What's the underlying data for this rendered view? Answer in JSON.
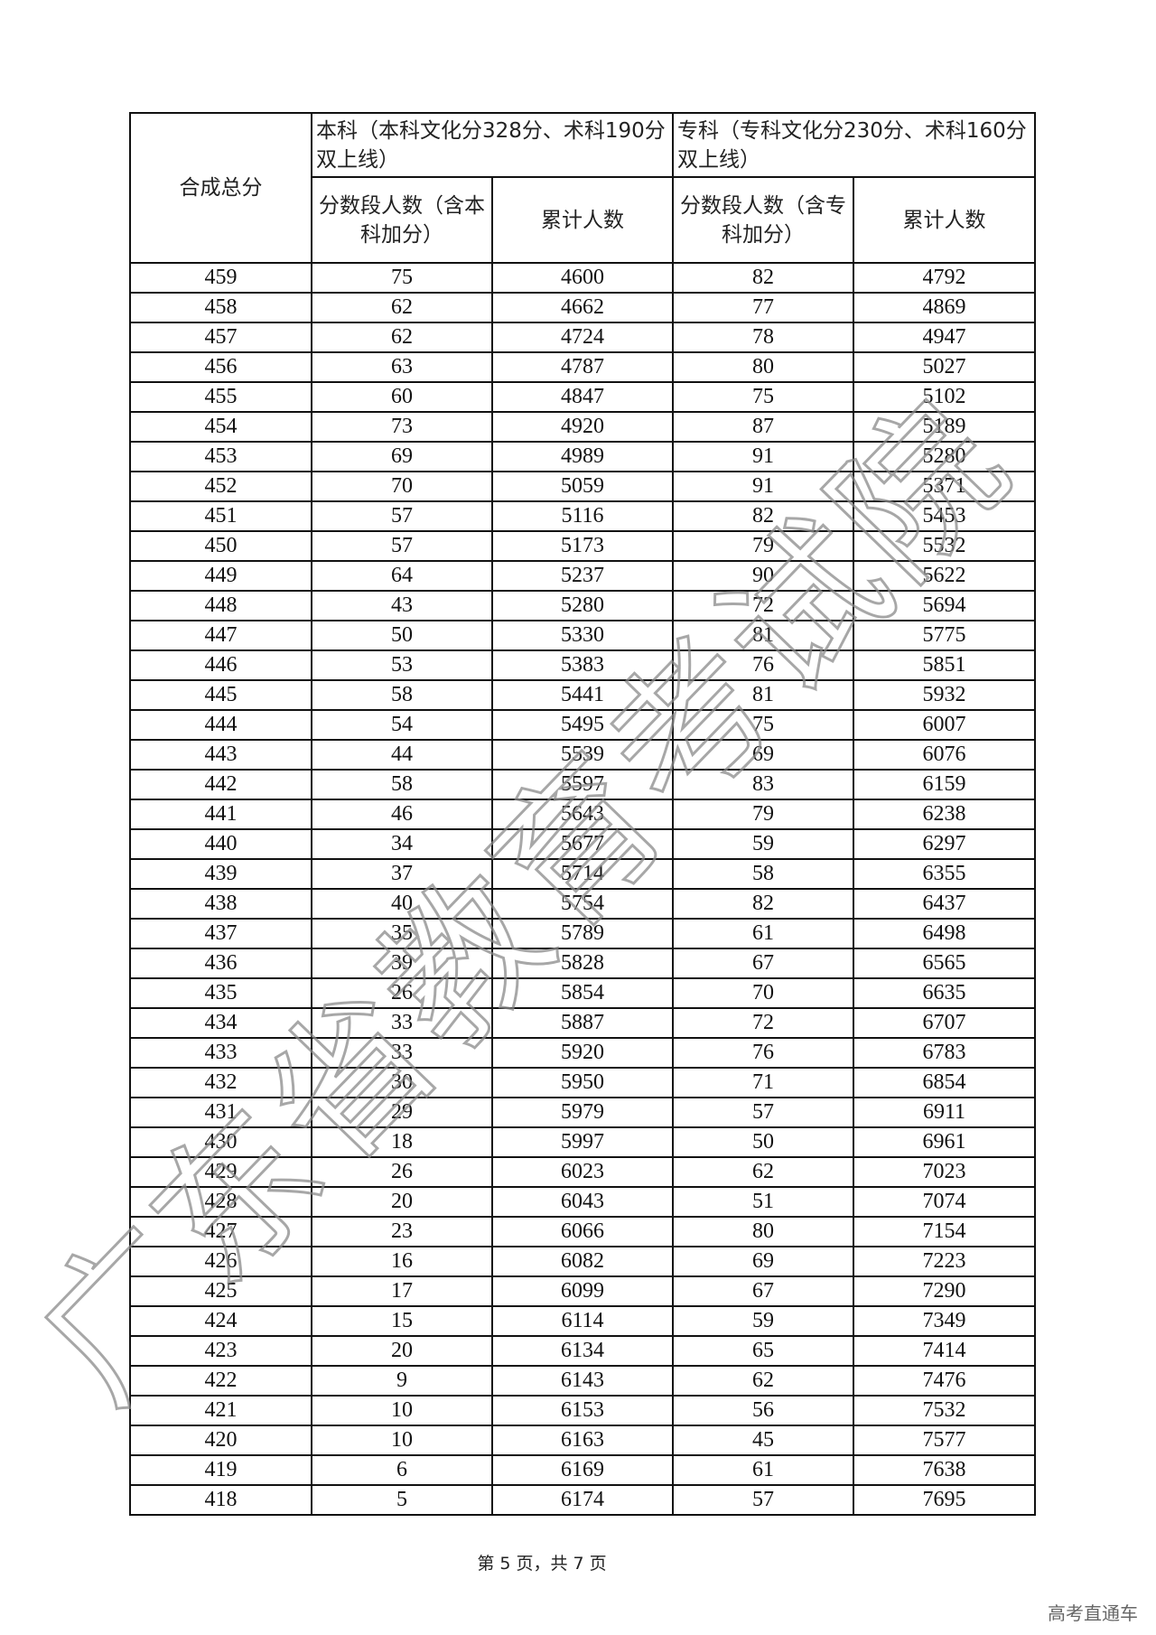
{
  "table": {
    "header_total": "合成总分",
    "group_benke": "本科（本科文化分328分、术科190分双上线）",
    "group_zhuanke": "专科（专科文化分230分、术科160分双上线）",
    "benke_count": "分数段人数（含本科加分）",
    "benke_cum": "累计人数",
    "zhuanke_count": "分数段人数（含专科加分）",
    "zhuanke_cum": "累计人数",
    "rows": [
      [
        "459",
        "75",
        "4600",
        "82",
        "4792"
      ],
      [
        "458",
        "62",
        "4662",
        "77",
        "4869"
      ],
      [
        "457",
        "62",
        "4724",
        "78",
        "4947"
      ],
      [
        "456",
        "63",
        "4787",
        "80",
        "5027"
      ],
      [
        "455",
        "60",
        "4847",
        "75",
        "5102"
      ],
      [
        "454",
        "73",
        "4920",
        "87",
        "5189"
      ],
      [
        "453",
        "69",
        "4989",
        "91",
        "5280"
      ],
      [
        "452",
        "70",
        "5059",
        "91",
        "5371"
      ],
      [
        "451",
        "57",
        "5116",
        "82",
        "5453"
      ],
      [
        "450",
        "57",
        "5173",
        "79",
        "5532"
      ],
      [
        "449",
        "64",
        "5237",
        "90",
        "5622"
      ],
      [
        "448",
        "43",
        "5280",
        "72",
        "5694"
      ],
      [
        "447",
        "50",
        "5330",
        "81",
        "5775"
      ],
      [
        "446",
        "53",
        "5383",
        "76",
        "5851"
      ],
      [
        "445",
        "58",
        "5441",
        "81",
        "5932"
      ],
      [
        "444",
        "54",
        "5495",
        "75",
        "6007"
      ],
      [
        "443",
        "44",
        "5539",
        "69",
        "6076"
      ],
      [
        "442",
        "58",
        "5597",
        "83",
        "6159"
      ],
      [
        "441",
        "46",
        "5643",
        "79",
        "6238"
      ],
      [
        "440",
        "34",
        "5677",
        "59",
        "6297"
      ],
      [
        "439",
        "37",
        "5714",
        "58",
        "6355"
      ],
      [
        "438",
        "40",
        "5754",
        "82",
        "6437"
      ],
      [
        "437",
        "35",
        "5789",
        "61",
        "6498"
      ],
      [
        "436",
        "39",
        "5828",
        "67",
        "6565"
      ],
      [
        "435",
        "26",
        "5854",
        "70",
        "6635"
      ],
      [
        "434",
        "33",
        "5887",
        "72",
        "6707"
      ],
      [
        "433",
        "33",
        "5920",
        "76",
        "6783"
      ],
      [
        "432",
        "30",
        "5950",
        "71",
        "6854"
      ],
      [
        "431",
        "29",
        "5979",
        "57",
        "6911"
      ],
      [
        "430",
        "18",
        "5997",
        "50",
        "6961"
      ],
      [
        "429",
        "26",
        "6023",
        "62",
        "7023"
      ],
      [
        "428",
        "20",
        "6043",
        "51",
        "7074"
      ],
      [
        "427",
        "23",
        "6066",
        "80",
        "7154"
      ],
      [
        "426",
        "16",
        "6082",
        "69",
        "7223"
      ],
      [
        "425",
        "17",
        "6099",
        "67",
        "7290"
      ],
      [
        "424",
        "15",
        "6114",
        "59",
        "7349"
      ],
      [
        "423",
        "20",
        "6134",
        "65",
        "7414"
      ],
      [
        "422",
        "9",
        "6143",
        "62",
        "7476"
      ],
      [
        "421",
        "10",
        "6153",
        "56",
        "7532"
      ],
      [
        "420",
        "10",
        "6163",
        "45",
        "7577"
      ],
      [
        "419",
        "6",
        "6169",
        "61",
        "7638"
      ],
      [
        "418",
        "5",
        "6174",
        "57",
        "7695"
      ]
    ]
  },
  "footer": {
    "page": "第 5 页，共 7 页"
  },
  "brand": "高考直通车",
  "watermark": "广东省教育考试院"
}
